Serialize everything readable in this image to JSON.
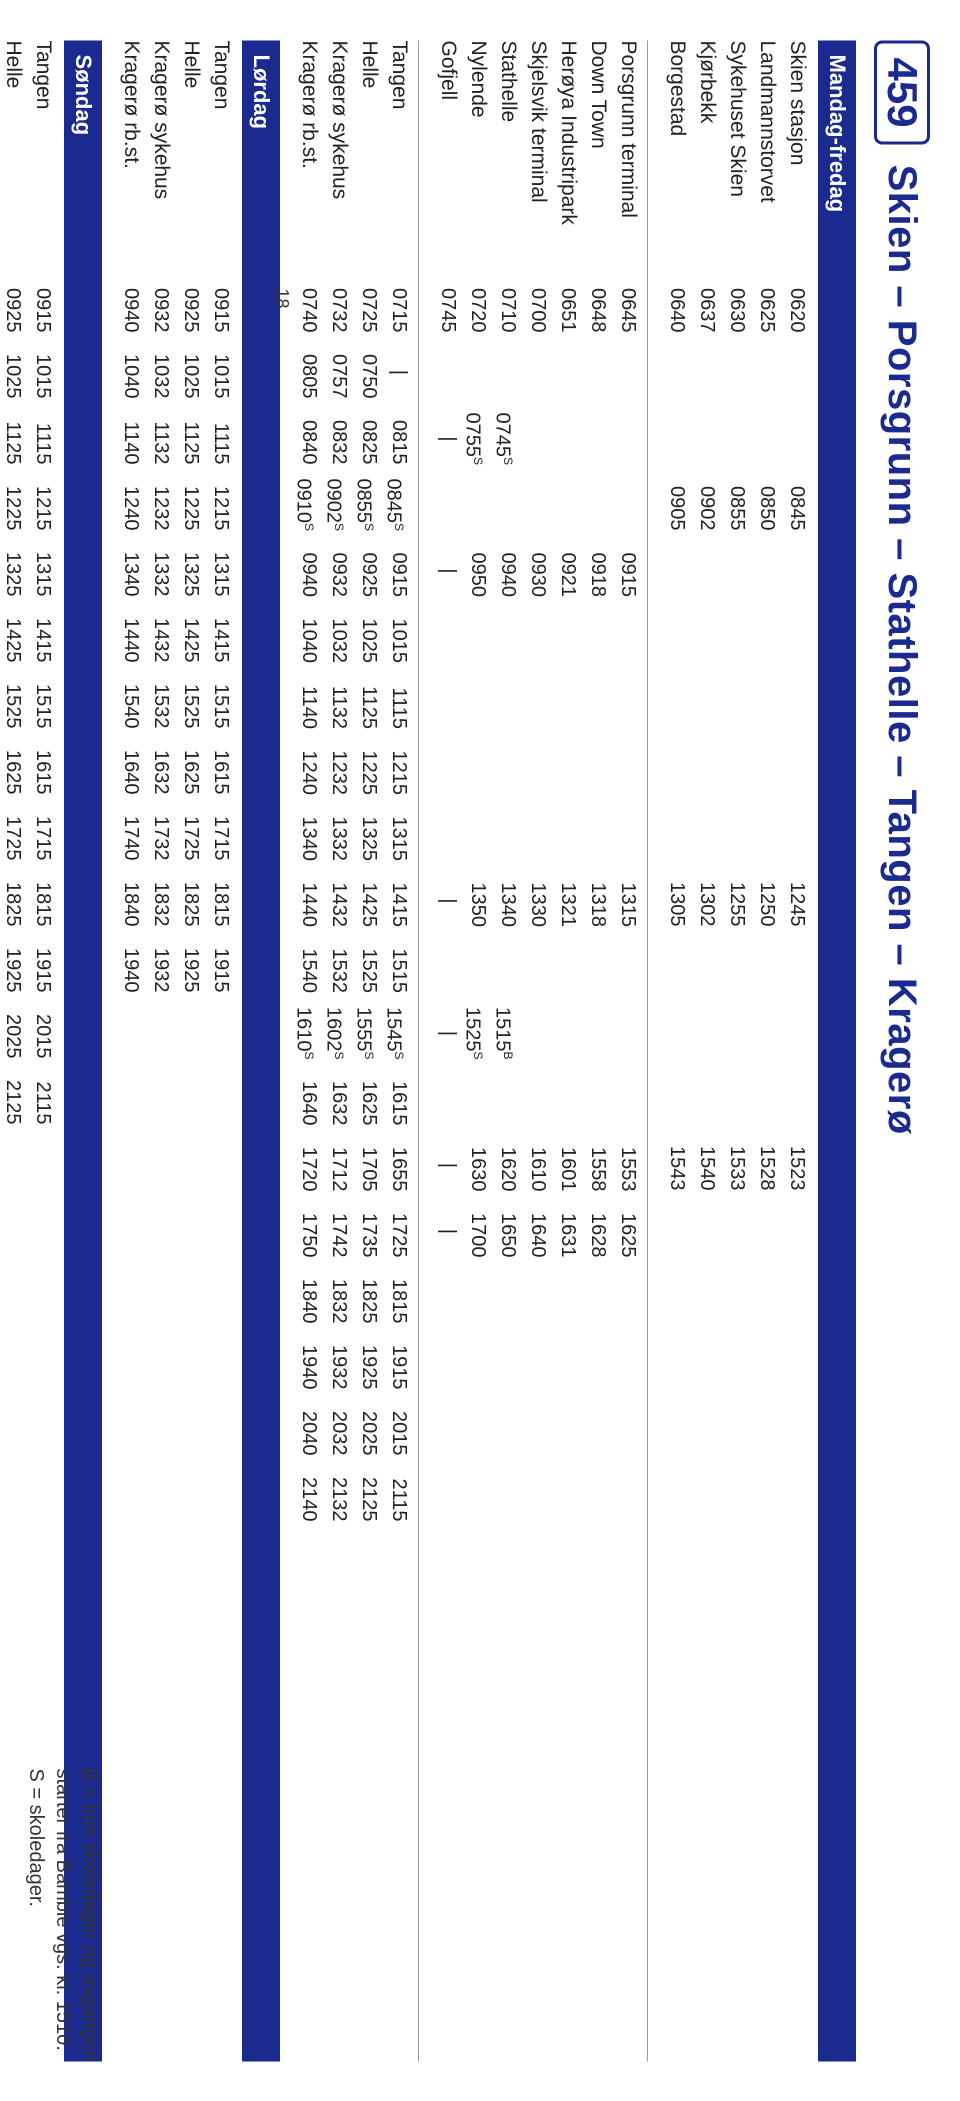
{
  "route": {
    "number": "459",
    "title": "Skien – Porsgrunn – Stathelle – Tangen – Kragerø"
  },
  "colors": {
    "brand": "#1a2a8f",
    "text": "#222222",
    "background": "#ffffff",
    "rule": "#999999"
  },
  "fonts": {
    "route_number": 42,
    "route_title": 40,
    "day_bar": 22,
    "stop_label": 21,
    "time_cell": 20
  },
  "pagenum": "18",
  "days": {
    "mf": "Mandag-fredag",
    "sat": "Lørdag",
    "sun": "Søndag"
  },
  "footer": {
    "line1": "B = kun skoledager og avgangen",
    "line2": "starter fra Bamble vgs. kl. 1510.",
    "line3": "S = skoledager."
  },
  "mf_block1": {
    "stops": [
      "Skien stasjon",
      "Landmannstorvet",
      "Sykehuset Skien",
      "Kjørbekk",
      "Borgestad"
    ],
    "columns": [
      [
        "0620",
        "0625",
        "0630",
        "0637",
        "0640"
      ],
      [
        "0845",
        "0850",
        "0855",
        "0902",
        "0905"
      ],
      [
        "1245",
        "1250",
        "1255",
        "1302",
        "1305"
      ],
      [
        "1523",
        "1528",
        "1533",
        "1540",
        "1543"
      ]
    ]
  },
  "mf_block2": {
    "stops": [
      "Porsgrunn terminal",
      "Down Town",
      "Herøya Industripark",
      "Skjelsvik terminal",
      "Stathelle",
      "Nylende",
      "Gofjell"
    ],
    "columns": [
      [
        "0645",
        "0648",
        "0651",
        "0700",
        "0710",
        "0720",
        "0745"
      ],
      [
        "",
        "",
        "",
        "",
        "0745ˢ",
        "0755ˢ",
        "|"
      ],
      [
        "0915",
        "0918",
        "0921",
        "0930",
        "0940",
        "0950",
        "|"
      ],
      [
        "1315",
        "1318",
        "1321",
        "1330",
        "1340",
        "1350",
        "|"
      ],
      [
        "",
        "",
        "",
        "",
        "1515ᴮ",
        "1525ˢ",
        "|"
      ],
      [
        "1553",
        "1558",
        "1601",
        "1610",
        "1620",
        "1630",
        "|"
      ],
      [
        "1625",
        "1628",
        "1631",
        "1640",
        "1650",
        "1700",
        "|"
      ]
    ]
  },
  "mf_block3": {
    "stops": [
      "Tangen",
      "Helle",
      "Kragerø sykehus",
      "Kragerø rb.st."
    ],
    "columns": [
      [
        "0715",
        "0725",
        "0732",
        "0740"
      ],
      [
        "|",
        "0750",
        "0757",
        "0805"
      ],
      [
        "0815",
        "0825",
        "0832",
        "0840"
      ],
      [
        "0845ˢ",
        "0855ˢ",
        "0902ˢ",
        "0910ˢ"
      ],
      [
        "0915",
        "0925",
        "0932",
        "0940"
      ],
      [
        "1015",
        "1025",
        "1032",
        "1040"
      ],
      [
        "1115",
        "1125",
        "1132",
        "1140"
      ],
      [
        "1215",
        "1225",
        "1232",
        "1240"
      ],
      [
        "1315",
        "1325",
        "1332",
        "1340"
      ],
      [
        "1415",
        "1425",
        "1432",
        "1440"
      ],
      [
        "1515",
        "1525",
        "1532",
        "1540"
      ],
      [
        "1545ˢ",
        "1555ˢ",
        "1602ˢ",
        "1610ˢ"
      ],
      [
        "1615",
        "1625",
        "1632",
        "1640"
      ],
      [
        "1655",
        "1705",
        "1712",
        "1720"
      ],
      [
        "1725",
        "1735",
        "1742",
        "1750"
      ],
      [
        "1815",
        "1825",
        "1832",
        "1840"
      ],
      [
        "1915",
        "1925",
        "1932",
        "1940"
      ],
      [
        "2015",
        "2025",
        "2032",
        "2040"
      ],
      [
        "2115",
        "2125",
        "2132",
        "2140"
      ]
    ]
  },
  "sat_block": {
    "stops": [
      "Tangen",
      "Helle",
      "Kragerø sykehus",
      "Kragerø rb.st."
    ],
    "columns": [
      [
        "0915",
        "0925",
        "0932",
        "0940"
      ],
      [
        "1015",
        "1025",
        "1032",
        "1040"
      ],
      [
        "1115",
        "1125",
        "1132",
        "1140"
      ],
      [
        "1215",
        "1225",
        "1232",
        "1240"
      ],
      [
        "1315",
        "1325",
        "1332",
        "1340"
      ],
      [
        "1415",
        "1425",
        "1432",
        "1440"
      ],
      [
        "1515",
        "1525",
        "1532",
        "1540"
      ],
      [
        "1615",
        "1625",
        "1632",
        "1640"
      ],
      [
        "1715",
        "1725",
        "1732",
        "1740"
      ],
      [
        "1815",
        "1825",
        "1832",
        "1840"
      ],
      [
        "1915",
        "1925",
        "1932",
        "1940"
      ]
    ]
  },
  "sun_block": {
    "stops": [
      "Tangen",
      "Helle",
      "Kragerø sykehus",
      "Kragerø rb.st."
    ],
    "columns": [
      [
        "0915",
        "0925",
        "0932",
        "0940"
      ],
      [
        "1015",
        "1025",
        "1032",
        "1040"
      ],
      [
        "1115",
        "1125",
        "1132",
        "1140"
      ],
      [
        "1215",
        "1225",
        "1232",
        "1240"
      ],
      [
        "1315",
        "1325",
        "1332",
        "1340"
      ],
      [
        "1415",
        "1425",
        "1432",
        "1440"
      ],
      [
        "1515",
        "1525",
        "1532",
        "1540"
      ],
      [
        "1615",
        "1625",
        "1632",
        "1640"
      ],
      [
        "1715",
        "1725",
        "1732",
        "1740"
      ],
      [
        "1815",
        "1825",
        "1832",
        "1840"
      ],
      [
        "1915",
        "1925",
        "1932",
        "1940"
      ],
      [
        "2015",
        "2025",
        "2032",
        "2040"
      ],
      [
        "2115",
        "2125",
        "2132",
        "2140"
      ]
    ]
  },
  "mf_block2_col_offsets": [
    0,
    1,
    2,
    5,
    7,
    9,
    10
  ]
}
